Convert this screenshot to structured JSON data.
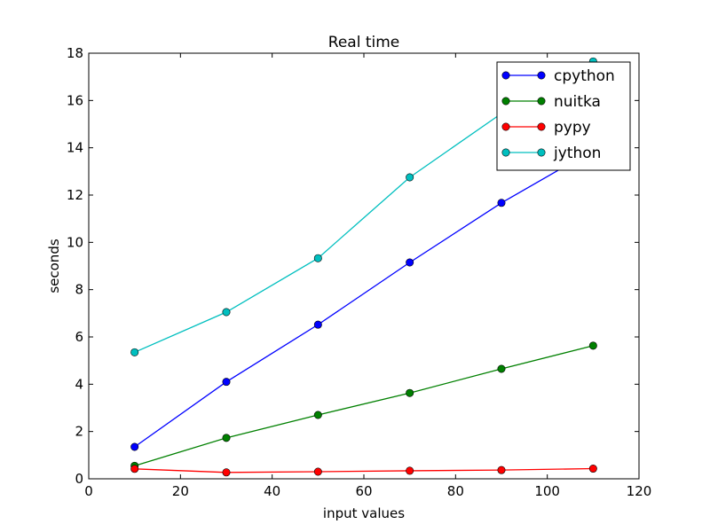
{
  "chart_data": {
    "type": "line",
    "title": "Real time",
    "xlabel": "input values",
    "ylabel": "seconds",
    "xlim": [
      0,
      120
    ],
    "ylim": [
      0,
      18
    ],
    "xticks": [
      "0",
      "20",
      "40",
      "60",
      "80",
      "100",
      "120"
    ],
    "yticks": [
      "0",
      "2",
      "4",
      "6",
      "8",
      "10",
      "12",
      "14",
      "16",
      "18"
    ],
    "grid": false,
    "legend_position": "top-right",
    "x": [
      10,
      30,
      50,
      70,
      90,
      110
    ],
    "series": [
      {
        "name": "cpython",
        "color": "#0000ff",
        "values": [
          1.35,
          4.1,
          6.52,
          9.15,
          11.67,
          13.9
        ]
      },
      {
        "name": "nuitka",
        "color": "#008000",
        "values": [
          0.55,
          1.73,
          2.7,
          3.63,
          4.65,
          5.63
        ]
      },
      {
        "name": "pypy",
        "color": "#ff0000",
        "values": [
          0.42,
          0.27,
          0.3,
          0.34,
          0.37,
          0.43
        ]
      },
      {
        "name": "jython",
        "color": "#00bfbf",
        "values": [
          5.35,
          7.05,
          9.33,
          12.75,
          15.45,
          17.65
        ]
      }
    ]
  }
}
